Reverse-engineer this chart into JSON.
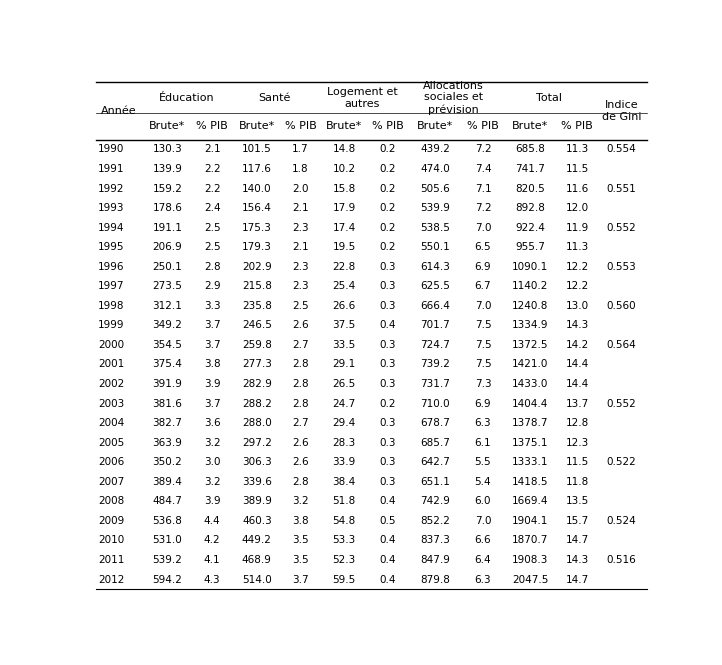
{
  "years": [
    1990,
    1991,
    1992,
    1993,
    1994,
    1995,
    1996,
    1997,
    1998,
    1999,
    2000,
    2001,
    2002,
    2003,
    2004,
    2005,
    2006,
    2007,
    2008,
    2009,
    2010,
    2011,
    2012
  ],
  "edu_brute": [
    "130.3",
    "139.9",
    "159.2",
    "178.6",
    "191.1",
    "206.9",
    "250.1",
    "273.5",
    "312.1",
    "349.2",
    "354.5",
    "375.4",
    "391.9",
    "381.6",
    "382.7",
    "363.9",
    "350.2",
    "389.4",
    "484.7",
    "536.8",
    "531.0",
    "539.2",
    "594.2"
  ],
  "edu_pib": [
    "2.1",
    "2.2",
    "2.2",
    "2.4",
    "2.5",
    "2.5",
    "2.8",
    "2.9",
    "3.3",
    "3.7",
    "3.7",
    "3.8",
    "3.9",
    "3.7",
    "3.6",
    "3.2",
    "3.0",
    "3.2",
    "3.9",
    "4.4",
    "4.2",
    "4.1",
    "4.3"
  ],
  "san_brute": [
    "101.5",
    "117.6",
    "140.0",
    "156.4",
    "175.3",
    "179.3",
    "202.9",
    "215.8",
    "235.8",
    "246.5",
    "259.8",
    "277.3",
    "282.9",
    "288.2",
    "288.0",
    "297.2",
    "306.3",
    "339.6",
    "389.9",
    "460.3",
    "449.2",
    "468.9",
    "514.0"
  ],
  "san_pib": [
    "1.7",
    "1.8",
    "2.0",
    "2.1",
    "2.3",
    "2.1",
    "2.3",
    "2.3",
    "2.5",
    "2.6",
    "2.7",
    "2.8",
    "2.8",
    "2.8",
    "2.7",
    "2.6",
    "2.6",
    "2.8",
    "3.2",
    "3.8",
    "3.5",
    "3.5",
    "3.7"
  ],
  "log_brute": [
    "14.8",
    "10.2",
    "15.8",
    "17.9",
    "17.4",
    "19.5",
    "22.8",
    "25.4",
    "26.6",
    "37.5",
    "33.5",
    "29.1",
    "26.5",
    "24.7",
    "29.4",
    "28.3",
    "33.9",
    "38.4",
    "51.8",
    "54.8",
    "53.3",
    "52.3",
    "59.5"
  ],
  "log_pib": [
    "0.2",
    "0.2",
    "0.2",
    "0.2",
    "0.2",
    "0.2",
    "0.3",
    "0.3",
    "0.3",
    "0.4",
    "0.3",
    "0.3",
    "0.3",
    "0.2",
    "0.3",
    "0.3",
    "0.3",
    "0.3",
    "0.4",
    "0.5",
    "0.4",
    "0.4",
    "0.4"
  ],
  "alloc_brute": [
    "439.2",
    "474.0",
    "505.6",
    "539.9",
    "538.5",
    "550.1",
    "614.3",
    "625.5",
    "666.4",
    "701.7",
    "724.7",
    "739.2",
    "731.7",
    "710.0",
    "678.7",
    "685.7",
    "642.7",
    "651.1",
    "742.9",
    "852.2",
    "837.3",
    "847.9",
    "879.8"
  ],
  "alloc_pib": [
    "7.2",
    "7.4",
    "7.1",
    "7.2",
    "7.0",
    "6.5",
    "6.9",
    "6.7",
    "7.0",
    "7.5",
    "7.5",
    "7.5",
    "7.3",
    "6.9",
    "6.3",
    "6.1",
    "5.5",
    "5.4",
    "6.0",
    "7.0",
    "6.6",
    "6.4",
    "6.3"
  ],
  "total_brute": [
    "685.8",
    "741.7",
    "820.5",
    "892.8",
    "922.4",
    "955.7",
    "1090.1",
    "1140.2",
    "1240.8",
    "1334.9",
    "1372.5",
    "1421.0",
    "1433.0",
    "1404.4",
    "1378.7",
    "1375.1",
    "1333.1",
    "1418.5",
    "1669.4",
    "1904.1",
    "1870.7",
    "1908.3",
    "2047.5"
  ],
  "total_pib": [
    "11.3",
    "11.5",
    "11.6",
    "12.0",
    "11.9",
    "11.3",
    "12.2",
    "12.2",
    "13.0",
    "14.3",
    "14.2",
    "14.4",
    "14.4",
    "13.7",
    "12.8",
    "12.3",
    "11.5",
    "11.8",
    "13.5",
    "15.7",
    "14.7",
    "14.3",
    "14.7"
  ],
  "gini": [
    "0.554",
    "",
    "0.551",
    "",
    "0.552",
    "",
    "0.553",
    "",
    "0.560",
    "",
    "0.564",
    "",
    "",
    "0.552",
    "",
    "",
    "0.522",
    "",
    "",
    "0.524",
    "",
    "0.516",
    ""
  ],
  "background_color": "#ffffff",
  "text_color": "#000000",
  "line_color": "#000000",
  "font_size": 7.5,
  "header_font_size": 8.0
}
